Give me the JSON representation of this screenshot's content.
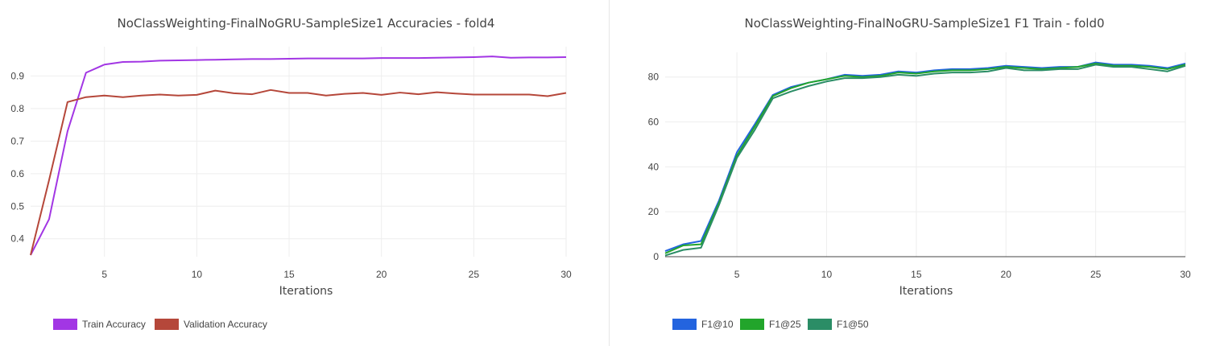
{
  "chart_data": [
    {
      "type": "line",
      "title": "NoClassWeighting-FinalNoGRU-SampleSize1 Accuracies - fold4",
      "xlabel": "Iterations",
      "ylabel": "",
      "xlim": [
        1,
        30
      ],
      "ylim": [
        0.345,
        0.99
      ],
      "xticks": [
        5,
        10,
        15,
        20,
        25,
        30
      ],
      "yticks": [
        0.4,
        0.5,
        0.6,
        0.7,
        0.8,
        0.9
      ],
      "grid": true,
      "legend_position": "bottom-left",
      "x": [
        1,
        2,
        3,
        4,
        5,
        6,
        7,
        8,
        9,
        10,
        11,
        12,
        13,
        14,
        15,
        16,
        17,
        18,
        19,
        20,
        21,
        22,
        23,
        24,
        25,
        26,
        27,
        28,
        29,
        30
      ],
      "series": [
        {
          "name": "Train Accuracy",
          "color": "#a236e4",
          "values": [
            0.35,
            0.46,
            0.73,
            0.91,
            0.935,
            0.943,
            0.944,
            0.947,
            0.948,
            0.949,
            0.95,
            0.951,
            0.952,
            0.952,
            0.953,
            0.954,
            0.954,
            0.954,
            0.954,
            0.955,
            0.955,
            0.955,
            0.956,
            0.957,
            0.958,
            0.96,
            0.956,
            0.957,
            0.957,
            0.958
          ]
        },
        {
          "name": "Validation Accuracy",
          "color": "#b5473a",
          "values": [
            0.35,
            0.58,
            0.82,
            0.835,
            0.84,
            0.835,
            0.84,
            0.843,
            0.84,
            0.842,
            0.855,
            0.847,
            0.844,
            0.857,
            0.848,
            0.848,
            0.84,
            0.845,
            0.848,
            0.842,
            0.849,
            0.844,
            0.85,
            0.846,
            0.843,
            0.843,
            0.843,
            0.843,
            0.838,
            0.848
          ]
        }
      ]
    },
    {
      "type": "line",
      "title": "NoClassWeighting-FinalNoGRU-SampleSize1 F1 Train - fold0",
      "xlabel": "Iterations",
      "ylabel": "",
      "xlim": [
        1,
        30
      ],
      "ylim": [
        0,
        91
      ],
      "xticks": [
        5,
        10,
        15,
        20,
        25,
        30
      ],
      "yticks": [
        0,
        20,
        40,
        60,
        80
      ],
      "grid": true,
      "legend_position": "bottom-left",
      "x": [
        1,
        2,
        3,
        4,
        5,
        6,
        7,
        8,
        9,
        10,
        11,
        12,
        13,
        14,
        15,
        16,
        17,
        18,
        19,
        20,
        21,
        22,
        23,
        24,
        25,
        26,
        27,
        28,
        29,
        30
      ],
      "series": [
        {
          "name": "F1@10",
          "color": "#2364df",
          "values": [
            2.5,
            5.5,
            7,
            25,
            46.5,
            59,
            72,
            75.5,
            77.5,
            79,
            81,
            80.5,
            81,
            82.5,
            82,
            83,
            83.5,
            83.5,
            84,
            85,
            84.5,
            84,
            84.5,
            84.5,
            86.5,
            85.5,
            85.5,
            85,
            84,
            86
          ]
        },
        {
          "name": "F1@25",
          "color": "#22a52b",
          "values": [
            1.5,
            5,
            5.5,
            24,
            45,
            58,
            71.5,
            75,
            77.5,
            79,
            80.5,
            80,
            80.5,
            82,
            81.5,
            82.5,
            83,
            83,
            83.5,
            84.5,
            84,
            83.5,
            84,
            84.5,
            86,
            85,
            85,
            84.5,
            83.5,
            85.5
          ]
        },
        {
          "name": "F1@50",
          "color": "#2b8d66",
          "values": [
            0.5,
            3,
            4,
            23,
            44,
            56.5,
            70.5,
            73.5,
            76,
            78,
            79.5,
            79.5,
            80,
            81,
            80.5,
            81.5,
            82,
            82,
            82.5,
            84,
            83,
            83,
            83.5,
            83.5,
            85.5,
            84.5,
            84.5,
            83.5,
            82.5,
            85
          ]
        }
      ]
    }
  ]
}
